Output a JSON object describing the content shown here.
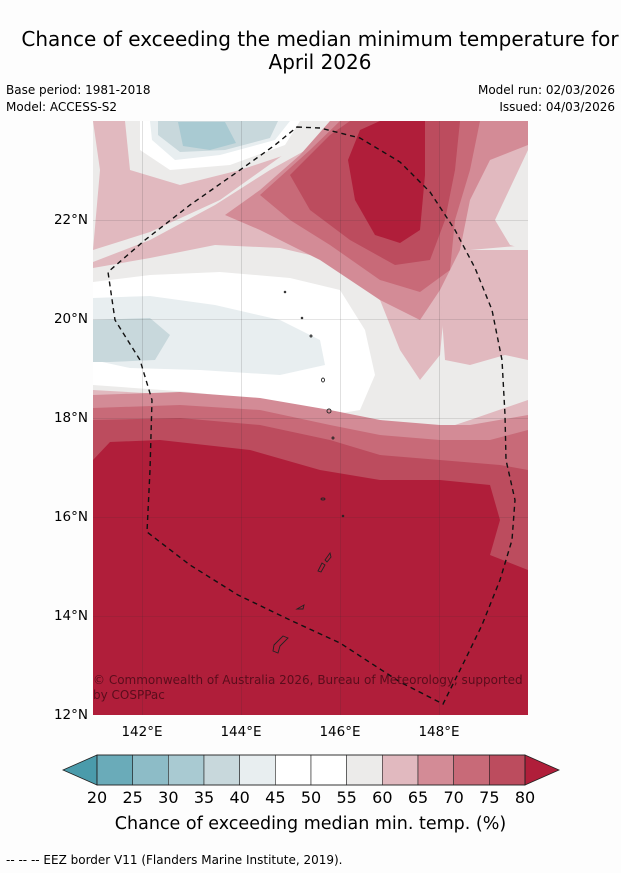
{
  "title_line1": "Chance of exceeding the median minimum temperature for",
  "title_line2": "April 2026",
  "base_period": "Base period: 1981-2018",
  "model": "Model: ACCESS-S2",
  "model_run": "Model run: 02/03/2026",
  "issued": "Issued: 04/03/2026",
  "lat_labels": [
    "22°N",
    "20°N",
    "18°N",
    "16°N",
    "14°N",
    "12°N"
  ],
  "lon_labels": [
    "142°E",
    "144°E",
    "146°E",
    "148°E"
  ],
  "copyright": "© Commonwealth of Australia 2026, Bureau of Meteorology, supported by COSPPac",
  "colorbar": {
    "ticks": [
      "20",
      "25",
      "30",
      "35",
      "40",
      "45",
      "50",
      "55",
      "60",
      "65",
      "70",
      "75",
      "80"
    ],
    "colors": [
      "#6aabb9",
      "#8dbcc7",
      "#a9cad2",
      "#c8d8dc",
      "#e8eef0",
      "#ffffff",
      "#ffffff",
      "#ecebea",
      "#e1b9bf",
      "#d38b96",
      "#c86a78",
      "#bc4c5e",
      "#b01e3a"
    ],
    "below_color": "#4a9bab",
    "above_color": "#b01e3a",
    "label": "Chance of exceeding median min. temp. (%)"
  },
  "legend_note": "--  --  -- EEZ border V11 (Flanders Marine Institute, 2019)."
}
